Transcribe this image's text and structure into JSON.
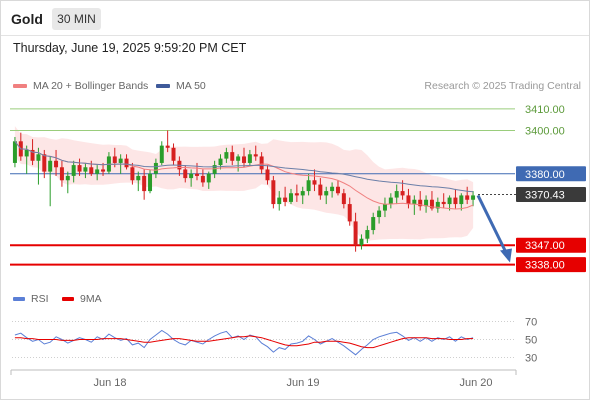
{
  "header": {
    "instrument": "Gold",
    "timeframe": "30 MIN",
    "datetime": "Thursday, June 19, 2025 9:59:20 PM CET"
  },
  "legend": {
    "bb_label": "MA 20 + Bollinger Bands",
    "ma50_label": "MA 50",
    "credit": "Research © 2025 Trading Central",
    "rsi_label": "RSI",
    "rsi_ma_label": "9MA"
  },
  "colors": {
    "bull": "#2a9d2a",
    "bear": "#d62020",
    "bb_fill": "#fde2e2",
    "ma20": "#f08080",
    "ma50": "#6b7fa8",
    "pivot": "#3f6ab3",
    "support": "#e60000",
    "resistance": "#9acd7c",
    "rsi": "#5b7fd6",
    "rsi_ma": "#e60000"
  },
  "chart_data": [
    {
      "type": "candlestick",
      "ylim": [
        3330,
        3415
      ],
      "x_ticks": [
        "Jun 18",
        "Jun 19",
        "Jun 20"
      ],
      "levels": [
        {
          "value": 3410.0,
          "label": "3410.00",
          "role": "resistance"
        },
        {
          "value": 3400.0,
          "label": "3400.00",
          "role": "resistance"
        },
        {
          "value": 3380.0,
          "label": "3380.00",
          "role": "pivot"
        },
        {
          "value": 3370.43,
          "label": "3370.43",
          "role": "last"
        },
        {
          "value": 3347.0,
          "label": "3347.00",
          "role": "support"
        },
        {
          "value": 3338.0,
          "label": "3338.00",
          "role": "support"
        }
      ],
      "forecast_arrow": {
        "from": 3370,
        "to": 3339
      },
      "candles": [
        [
          3385,
          3397,
          3383,
          3395
        ],
        [
          3395,
          3399,
          3386,
          3388
        ],
        [
          3388,
          3393,
          3380,
          3391
        ],
        [
          3391,
          3396,
          3384,
          3386
        ],
        [
          3386,
          3392,
          3375,
          3389
        ],
        [
          3389,
          3391,
          3378,
          3381
        ],
        [
          3381,
          3388,
          3365,
          3386
        ],
        [
          3386,
          3391,
          3379,
          3383
        ],
        [
          3383,
          3386,
          3374,
          3377
        ],
        [
          3377,
          3381,
          3371,
          3379
        ],
        [
          3379,
          3386,
          3376,
          3384
        ],
        [
          3384,
          3387,
          3379,
          3381
        ],
        [
          3381,
          3385,
          3378,
          3383
        ],
        [
          3383,
          3386,
          3379,
          3380
        ],
        [
          3380,
          3384,
          3377,
          3382
        ],
        [
          3382,
          3385,
          3379,
          3381
        ],
        [
          3381,
          3390,
          3380,
          3388
        ],
        [
          3388,
          3392,
          3383,
          3385
        ],
        [
          3385,
          3389,
          3380,
          3387
        ],
        [
          3387,
          3389,
          3382,
          3383
        ],
        [
          3383,
          3385,
          3375,
          3377
        ],
        [
          3377,
          3381,
          3372,
          3379
        ],
        [
          3379,
          3382,
          3368,
          3372
        ],
        [
          3372,
          3382,
          3371,
          3380
        ],
        [
          3380,
          3387,
          3378,
          3385
        ],
        [
          3385,
          3395,
          3384,
          3393
        ],
        [
          3393,
          3400,
          3390,
          3392
        ],
        [
          3392,
          3394,
          3384,
          3386
        ],
        [
          3386,
          3388,
          3379,
          3382
        ],
        [
          3382,
          3384,
          3376,
          3378
        ],
        [
          3378,
          3382,
          3374,
          3380
        ],
        [
          3380,
          3385,
          3377,
          3379
        ],
        [
          3379,
          3382,
          3374,
          3376
        ],
        [
          3376,
          3381,
          3373,
          3380
        ],
        [
          3380,
          3386,
          3378,
          3384
        ],
        [
          3384,
          3389,
          3382,
          3387
        ],
        [
          3387,
          3392,
          3385,
          3390
        ],
        [
          3390,
          3393,
          3384,
          3386
        ],
        [
          3386,
          3389,
          3381,
          3388
        ],
        [
          3388,
          3392,
          3383,
          3385
        ],
        [
          3385,
          3391,
          3384,
          3389
        ],
        [
          3389,
          3393,
          3386,
          3388
        ],
        [
          3388,
          3390,
          3380,
          3382
        ],
        [
          3382,
          3384,
          3375,
          3377
        ],
        [
          3377,
          3379,
          3364,
          3366
        ],
        [
          3366,
          3372,
          3363,
          3369
        ],
        [
          3369,
          3374,
          3365,
          3367
        ],
        [
          3367,
          3373,
          3366,
          3371
        ],
        [
          3371,
          3375,
          3367,
          3370
        ],
        [
          3370,
          3374,
          3366,
          3372
        ],
        [
          3372,
          3380,
          3370,
          3377
        ],
        [
          3377,
          3382,
          3372,
          3375
        ],
        [
          3375,
          3378,
          3368,
          3370
        ],
        [
          3370,
          3374,
          3366,
          3372
        ],
        [
          3372,
          3376,
          3369,
          3374
        ],
        [
          3374,
          3377,
          3370,
          3371
        ],
        [
          3371,
          3373,
          3364,
          3366
        ],
        [
          3366,
          3369,
          3356,
          3358
        ],
        [
          3358,
          3362,
          3344,
          3347
        ],
        [
          3347,
          3352,
          3345,
          3350
        ],
        [
          3350,
          3356,
          3348,
          3354
        ],
        [
          3354,
          3362,
          3352,
          3360
        ],
        [
          3360,
          3365,
          3357,
          3363
        ],
        [
          3363,
          3369,
          3360,
          3366
        ],
        [
          3366,
          3371,
          3364,
          3369
        ],
        [
          3369,
          3375,
          3366,
          3372
        ],
        [
          3372,
          3377,
          3368,
          3370
        ],
        [
          3370,
          3373,
          3364,
          3366
        ],
        [
          3366,
          3370,
          3361,
          3368
        ],
        [
          3368,
          3372,
          3363,
          3365
        ],
        [
          3365,
          3370,
          3362,
          3368
        ],
        [
          3368,
          3372,
          3363,
          3364
        ],
        [
          3364,
          3369,
          3362,
          3367
        ],
        [
          3367,
          3371,
          3364,
          3366
        ],
        [
          3366,
          3370,
          3363,
          3369
        ],
        [
          3369,
          3373,
          3364,
          3366
        ],
        [
          3366,
          3371,
          3363,
          3370
        ],
        [
          3370,
          3374,
          3366,
          3368
        ],
        [
          3368,
          3372,
          3365,
          3370
        ]
      ]
    },
    {
      "type": "line",
      "name": "RSI",
      "ylim": [
        25,
        75
      ],
      "ticks": [
        "70",
        "50",
        "30"
      ],
      "values": [
        55,
        57,
        52,
        48,
        50,
        45,
        47,
        53,
        50,
        46,
        49,
        52,
        50,
        47,
        53,
        50,
        56,
        52,
        49,
        51,
        44,
        46,
        41,
        50,
        55,
        60,
        56,
        50,
        46,
        44,
        49,
        47,
        45,
        50,
        54,
        57,
        59,
        52,
        54,
        50,
        55,
        53,
        46,
        42,
        36,
        41,
        39,
        45,
        46,
        48,
        54,
        50,
        45,
        48,
        51,
        47,
        43,
        38,
        33,
        39,
        44,
        50,
        53,
        55,
        57,
        58,
        54,
        49,
        52,
        48,
        52,
        48,
        52,
        50,
        53,
        48,
        53,
        50,
        52
      ],
      "ma_values": [
        52,
        52,
        51,
        51,
        50,
        50,
        50,
        50,
        49,
        49,
        49,
        50,
        50,
        50,
        50,
        51,
        51,
        51,
        51,
        50,
        49,
        48,
        47,
        47,
        48,
        49,
        50,
        51,
        51,
        50,
        49,
        48,
        48,
        48,
        49,
        50,
        51,
        52,
        53,
        53,
        54,
        53,
        52,
        50,
        48,
        46,
        44,
        43,
        43,
        44,
        45,
        47,
        47,
        48,
        48,
        48,
        47,
        46,
        44,
        42,
        41,
        41,
        43,
        45,
        47,
        49,
        51,
        52,
        52,
        52,
        52,
        51,
        51,
        51,
        50,
        50,
        50,
        51,
        51
      ]
    }
  ]
}
